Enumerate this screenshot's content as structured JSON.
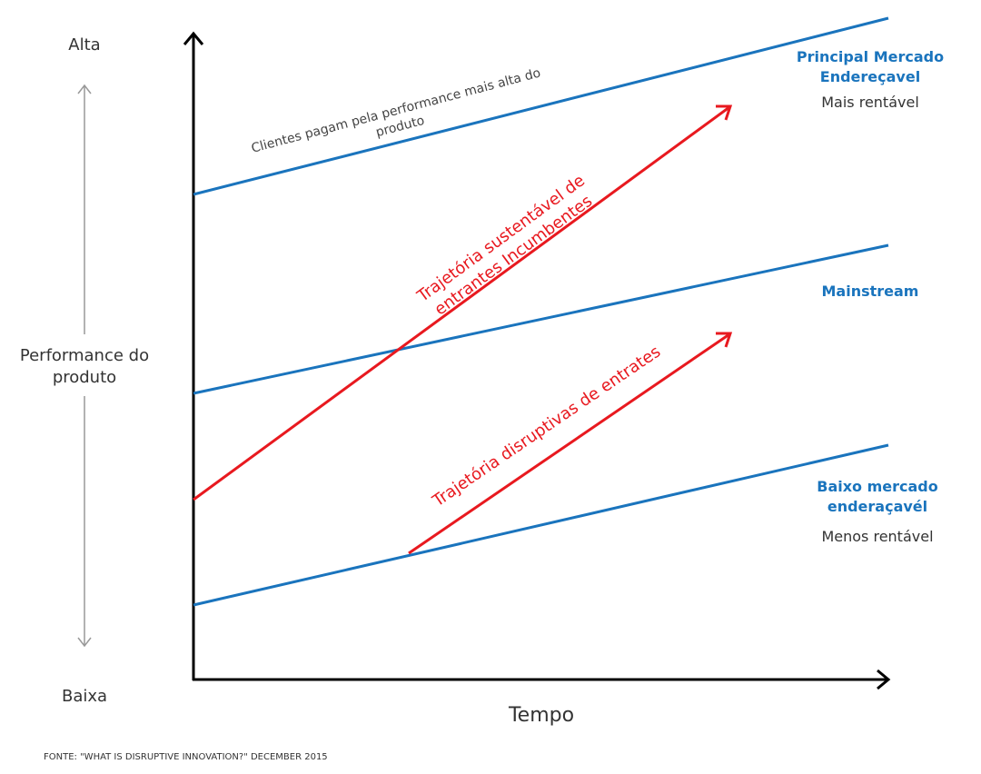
{
  "colors": {
    "market_line": "#1a74bd",
    "trajectory": "#e8191f",
    "axis": "#000000",
    "scale_arrow": "#999999"
  },
  "axes": {
    "y_high": "Alta",
    "y_low": "Baixa",
    "y_title_line1": "Performance do",
    "y_title_line2": "produto",
    "x_title": "Tempo"
  },
  "markets": {
    "top_line1": "Principal Mercado",
    "top_line2": "Endereçavel",
    "top_sub": "Mais rentável",
    "mid": "Mainstream",
    "low_line1": "Baixo mercado",
    "low_line2": "enderaçavél",
    "low_sub": "Menos rentável"
  },
  "clients_note_line1": "Clientes pagam pela performance mais alta do",
  "clients_note_line2": "produto",
  "trajectories": {
    "sustaining_line1": "Trajetória sustentável de",
    "sustaining_line2": "entrantes Incumbentes",
    "disruptive": "Trajetória disruptivas de entrates"
  },
  "source": "FONTE: \"WHAT IS DISRUPTIVE INNOVATION?\" DECEMBER 2015"
}
